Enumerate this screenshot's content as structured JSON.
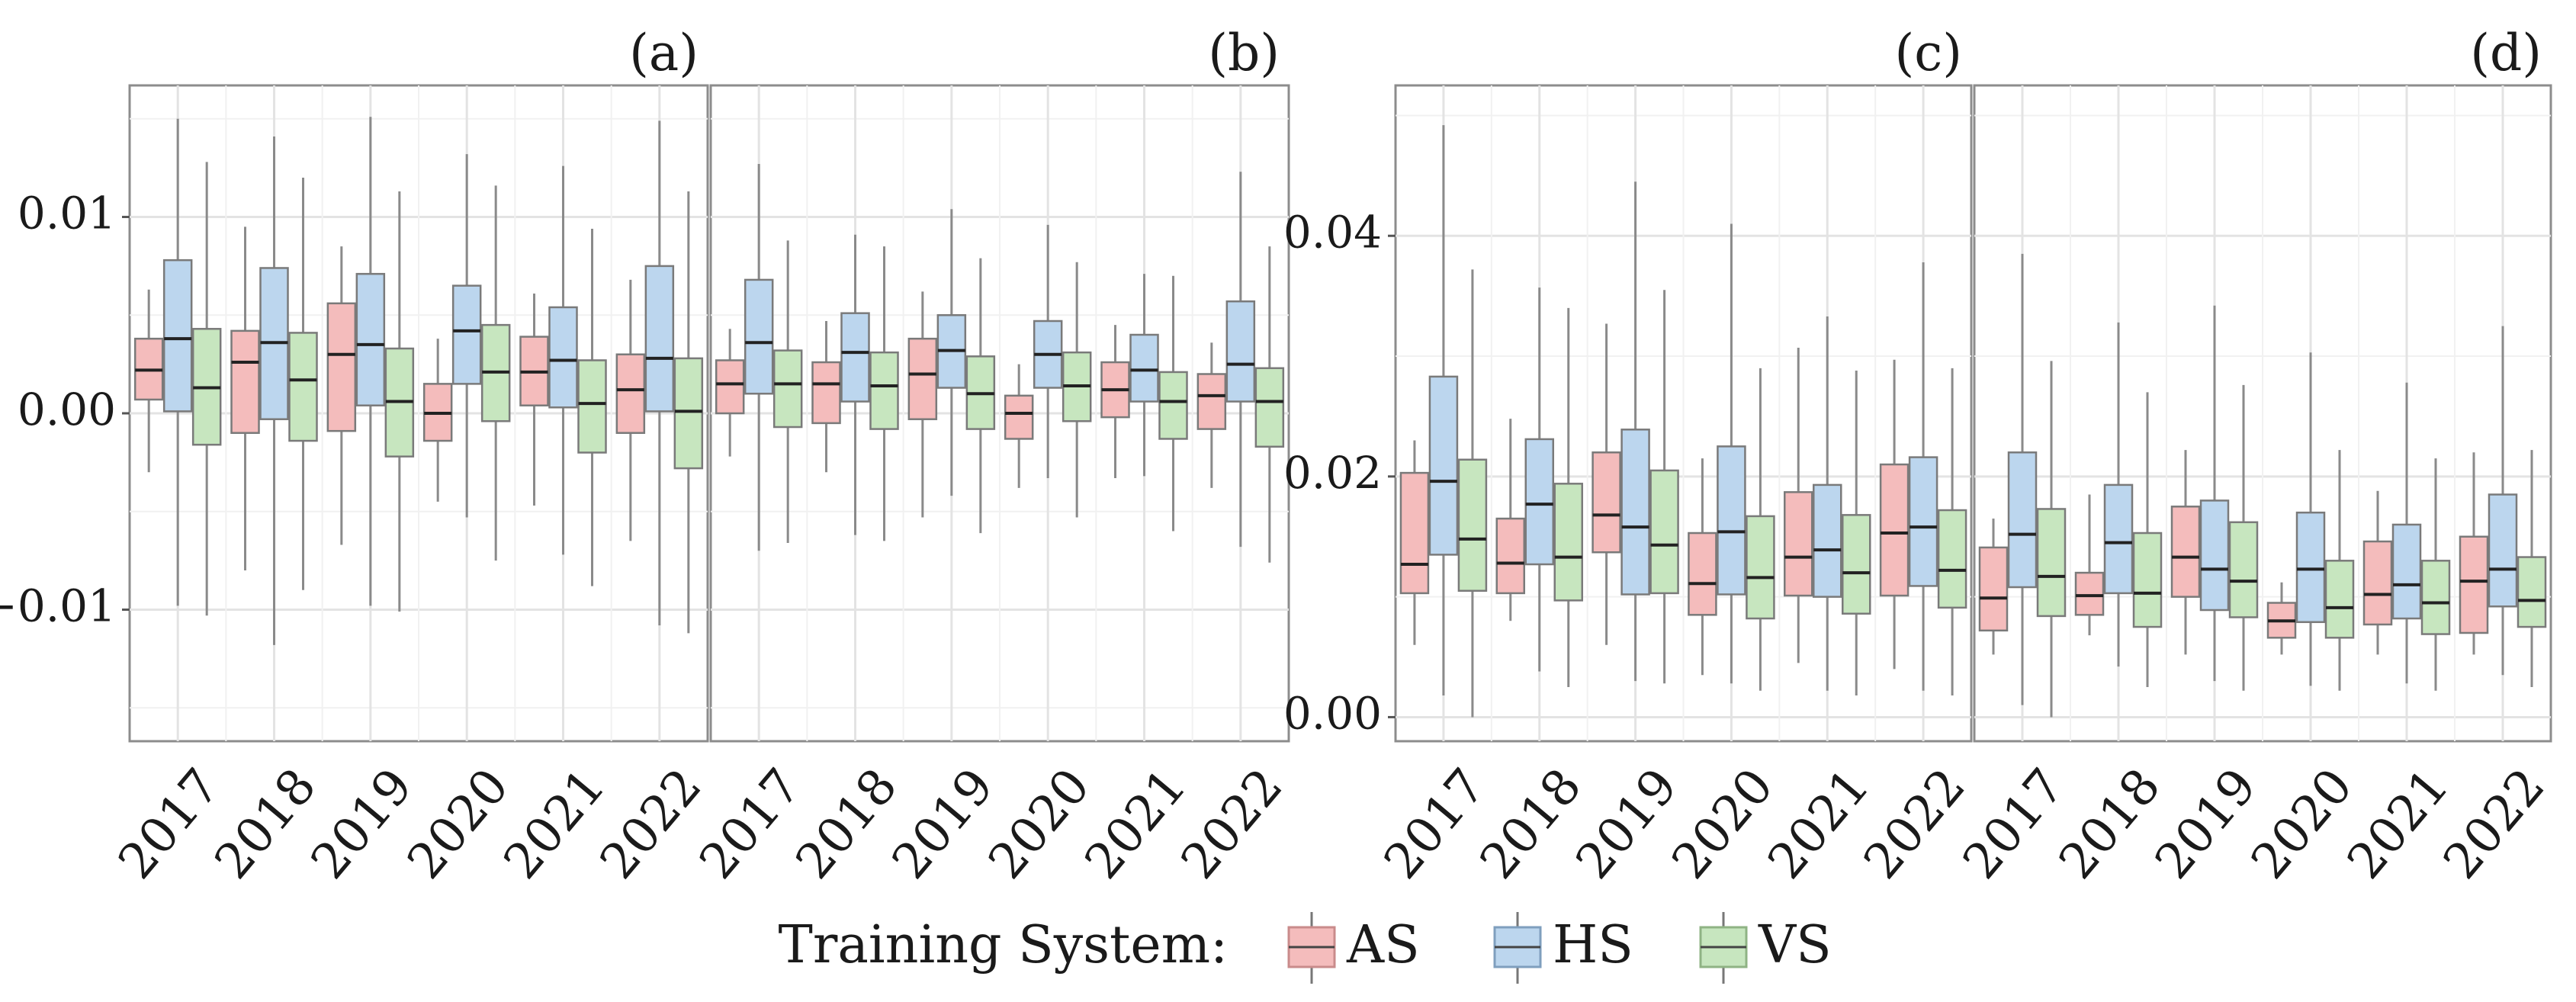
{
  "chart_data": [
    {
      "panel": "(a)",
      "type": "boxplot",
      "categories": [
        "2017",
        "2018",
        "2019",
        "2020",
        "2021",
        "2022"
      ],
      "ylim": [
        -0.0167,
        0.0167
      ],
      "yticks": [
        -0.01,
        0.0,
        0.01
      ],
      "ytick_labels": [
        "−0.01",
        "0.00",
        "0.01"
      ],
      "series": [
        {
          "name": "AS",
          "boxes": [
            {
              "low": -0.003,
              "q1": 0.0007,
              "median": 0.0022,
              "q3": 0.0038,
              "high": 0.0063
            },
            {
              "low": -0.008,
              "q1": -0.001,
              "median": 0.0026,
              "q3": 0.0042,
              "high": 0.0095
            },
            {
              "low": -0.0067,
              "q1": -0.0009,
              "median": 0.003,
              "q3": 0.0056,
              "high": 0.0085
            },
            {
              "low": -0.0045,
              "q1": -0.0014,
              "median": 0.0,
              "q3": 0.0015,
              "high": 0.0038
            },
            {
              "low": -0.0047,
              "q1": 0.0004,
              "median": 0.0021,
              "q3": 0.0039,
              "high": 0.0061
            },
            {
              "low": -0.0065,
              "q1": -0.001,
              "median": 0.0012,
              "q3": 0.003,
              "high": 0.0068
            }
          ]
        },
        {
          "name": "HS",
          "boxes": [
            {
              "low": -0.0098,
              "q1": 0.0001,
              "median": 0.0038,
              "q3": 0.0078,
              "high": 0.015
            },
            {
              "low": -0.0118,
              "q1": -0.0003,
              "median": 0.0036,
              "q3": 0.0074,
              "high": 0.0141
            },
            {
              "low": -0.0098,
              "q1": 0.0004,
              "median": 0.0035,
              "q3": 0.0071,
              "high": 0.0151
            },
            {
              "low": -0.0053,
              "q1": 0.0015,
              "median": 0.0042,
              "q3": 0.0065,
              "high": 0.0132
            },
            {
              "low": -0.0072,
              "q1": 0.0003,
              "median": 0.0027,
              "q3": 0.0054,
              "high": 0.0126
            },
            {
              "low": -0.0108,
              "q1": 0.0001,
              "median": 0.0028,
              "q3": 0.0075,
              "high": 0.0149
            }
          ]
        },
        {
          "name": "VS",
          "boxes": [
            {
              "low": -0.0103,
              "q1": -0.0016,
              "median": 0.0013,
              "q3": 0.0043,
              "high": 0.0128
            },
            {
              "low": -0.009,
              "q1": -0.0014,
              "median": 0.0017,
              "q3": 0.0041,
              "high": 0.012
            },
            {
              "low": -0.0101,
              "q1": -0.0022,
              "median": 0.0006,
              "q3": 0.0033,
              "high": 0.0113
            },
            {
              "low": -0.0075,
              "q1": -0.0004,
              "median": 0.0021,
              "q3": 0.0045,
              "high": 0.0116
            },
            {
              "low": -0.0088,
              "q1": -0.002,
              "median": 0.0005,
              "q3": 0.0027,
              "high": 0.0094
            },
            {
              "low": -0.0112,
              "q1": -0.0028,
              "median": 0.0001,
              "q3": 0.0028,
              "high": 0.0113
            }
          ]
        }
      ]
    },
    {
      "panel": "(b)",
      "type": "boxplot",
      "categories": [
        "2017",
        "2018",
        "2019",
        "2020",
        "2021",
        "2022"
      ],
      "ylim": [
        -0.0167,
        0.0167
      ],
      "series": [
        {
          "name": "AS",
          "boxes": [
            {
              "low": -0.0022,
              "q1": 0.0,
              "median": 0.0015,
              "q3": 0.0027,
              "high": 0.0043
            },
            {
              "low": -0.003,
              "q1": -0.0005,
              "median": 0.0015,
              "q3": 0.0026,
              "high": 0.0047
            },
            {
              "low": -0.0053,
              "q1": -0.0003,
              "median": 0.002,
              "q3": 0.0038,
              "high": 0.0062
            },
            {
              "low": -0.0038,
              "q1": -0.0013,
              "median": 0.0,
              "q3": 0.0009,
              "high": 0.0025
            },
            {
              "low": -0.0033,
              "q1": -0.0002,
              "median": 0.0012,
              "q3": 0.0026,
              "high": 0.0045
            },
            {
              "low": -0.0038,
              "q1": -0.0008,
              "median": 0.0009,
              "q3": 0.002,
              "high": 0.0036
            }
          ]
        },
        {
          "name": "HS",
          "boxes": [
            {
              "low": -0.007,
              "q1": 0.001,
              "median": 0.0036,
              "q3": 0.0068,
              "high": 0.0127
            },
            {
              "low": -0.0062,
              "q1": 0.0006,
              "median": 0.0031,
              "q3": 0.0051,
              "high": 0.0091
            },
            {
              "low": -0.0042,
              "q1": 0.0013,
              "median": 0.0032,
              "q3": 0.005,
              "high": 0.0104
            },
            {
              "low": -0.0033,
              "q1": 0.0013,
              "median": 0.003,
              "q3": 0.0047,
              "high": 0.0096
            },
            {
              "low": -0.0032,
              "q1": 0.0006,
              "median": 0.0022,
              "q3": 0.004,
              "high": 0.0071
            },
            {
              "low": -0.0068,
              "q1": 0.0006,
              "median": 0.0025,
              "q3": 0.0057,
              "high": 0.0123
            }
          ]
        },
        {
          "name": "VS",
          "boxes": [
            {
              "low": -0.0066,
              "q1": -0.0007,
              "median": 0.0015,
              "q3": 0.0032,
              "high": 0.0088
            },
            {
              "low": -0.0065,
              "q1": -0.0008,
              "median": 0.0014,
              "q3": 0.0031,
              "high": 0.0085
            },
            {
              "low": -0.0061,
              "q1": -0.0008,
              "median": 0.001,
              "q3": 0.0029,
              "high": 0.0079
            },
            {
              "low": -0.0053,
              "q1": -0.0004,
              "median": 0.0014,
              "q3": 0.0031,
              "high": 0.0077
            },
            {
              "low": -0.006,
              "q1": -0.0013,
              "median": 0.0006,
              "q3": 0.0021,
              "high": 0.007
            },
            {
              "low": -0.0076,
              "q1": -0.0017,
              "median": 0.0006,
              "q3": 0.0023,
              "high": 0.0085
            }
          ]
        }
      ]
    },
    {
      "panel": "(c)",
      "type": "boxplot",
      "categories": [
        "2017",
        "2018",
        "2019",
        "2020",
        "2021",
        "2022"
      ],
      "ylim": [
        -0.002,
        0.0525
      ],
      "yticks": [
        0.0,
        0.02,
        0.04
      ],
      "ytick_labels": [
        "0.00",
        "0.02",
        "0.04"
      ],
      "series": [
        {
          "name": "AS",
          "boxes": [
            {
              "low": 0.006,
              "q1": 0.0103,
              "median": 0.0127,
              "q3": 0.0203,
              "high": 0.023
            },
            {
              "low": 0.008,
              "q1": 0.0103,
              "median": 0.0128,
              "q3": 0.0165,
              "high": 0.0248
            },
            {
              "low": 0.006,
              "q1": 0.0137,
              "median": 0.0168,
              "q3": 0.022,
              "high": 0.0327
            },
            {
              "low": 0.0035,
              "q1": 0.0085,
              "median": 0.0111,
              "q3": 0.0153,
              "high": 0.0215
            },
            {
              "low": 0.0045,
              "q1": 0.0101,
              "median": 0.0133,
              "q3": 0.0187,
              "high": 0.0307
            },
            {
              "low": 0.004,
              "q1": 0.0101,
              "median": 0.0153,
              "q3": 0.021,
              "high": 0.0297
            }
          ]
        },
        {
          "name": "HS",
          "boxes": [
            {
              "low": 0.0018,
              "q1": 0.0135,
              "median": 0.0196,
              "q3": 0.0283,
              "high": 0.0492
            },
            {
              "low": 0.0038,
              "q1": 0.0127,
              "median": 0.0177,
              "q3": 0.0231,
              "high": 0.0357
            },
            {
              "low": 0.003,
              "q1": 0.0102,
              "median": 0.0158,
              "q3": 0.0239,
              "high": 0.0445
            },
            {
              "low": 0.0028,
              "q1": 0.0102,
              "median": 0.0154,
              "q3": 0.0225,
              "high": 0.041
            },
            {
              "low": 0.0022,
              "q1": 0.01,
              "median": 0.0139,
              "q3": 0.0193,
              "high": 0.0333
            },
            {
              "low": 0.0022,
              "q1": 0.0109,
              "median": 0.0158,
              "q3": 0.0216,
              "high": 0.0378
            }
          ]
        },
        {
          "name": "VS",
          "boxes": [
            {
              "low": 0.0,
              "q1": 0.0105,
              "median": 0.0148,
              "q3": 0.0214,
              "high": 0.0372
            },
            {
              "low": 0.0025,
              "q1": 0.0097,
              "median": 0.0133,
              "q3": 0.0194,
              "high": 0.034
            },
            {
              "low": 0.0028,
              "q1": 0.0103,
              "median": 0.0143,
              "q3": 0.0205,
              "high": 0.0355
            },
            {
              "low": 0.0022,
              "q1": 0.0082,
              "median": 0.0116,
              "q3": 0.0167,
              "high": 0.029
            },
            {
              "low": 0.0018,
              "q1": 0.0086,
              "median": 0.012,
              "q3": 0.0168,
              "high": 0.0288
            },
            {
              "low": 0.0018,
              "q1": 0.0091,
              "median": 0.0122,
              "q3": 0.0172,
              "high": 0.029
            }
          ]
        }
      ]
    },
    {
      "panel": "(d)",
      "type": "boxplot",
      "categories": [
        "2017",
        "2018",
        "2019",
        "2020",
        "2021",
        "2022"
      ],
      "ylim": [
        -0.002,
        0.0525
      ],
      "series": [
        {
          "name": "AS",
          "boxes": [
            {
              "low": 0.0052,
              "q1": 0.0072,
              "median": 0.0099,
              "q3": 0.0141,
              "high": 0.0165
            },
            {
              "low": 0.0068,
              "q1": 0.0085,
              "median": 0.0101,
              "q3": 0.012,
              "high": 0.0185
            },
            {
              "low": 0.0052,
              "q1": 0.01,
              "median": 0.0133,
              "q3": 0.0175,
              "high": 0.0222
            },
            {
              "low": 0.0052,
              "q1": 0.0066,
              "median": 0.008,
              "q3": 0.0095,
              "high": 0.0112
            },
            {
              "low": 0.0052,
              "q1": 0.0077,
              "median": 0.0102,
              "q3": 0.0146,
              "high": 0.0188
            },
            {
              "low": 0.0052,
              "q1": 0.007,
              "median": 0.0113,
              "q3": 0.015,
              "high": 0.022
            }
          ]
        },
        {
          "name": "HS",
          "boxes": [
            {
              "low": 0.001,
              "q1": 0.0108,
              "median": 0.0152,
              "q3": 0.022,
              "high": 0.0385
            },
            {
              "low": 0.0042,
              "q1": 0.0103,
              "median": 0.0145,
              "q3": 0.0193,
              "high": 0.0328
            },
            {
              "low": 0.003,
              "q1": 0.0089,
              "median": 0.0123,
              "q3": 0.018,
              "high": 0.0342
            },
            {
              "low": 0.0026,
              "q1": 0.0079,
              "median": 0.0123,
              "q3": 0.017,
              "high": 0.0303
            },
            {
              "low": 0.0028,
              "q1": 0.0082,
              "median": 0.011,
              "q3": 0.016,
              "high": 0.0278
            },
            {
              "low": 0.0035,
              "q1": 0.0092,
              "median": 0.0123,
              "q3": 0.0185,
              "high": 0.0325
            }
          ]
        },
        {
          "name": "VS",
          "boxes": [
            {
              "low": 0.0,
              "q1": 0.0084,
              "median": 0.0117,
              "q3": 0.0173,
              "high": 0.0296
            },
            {
              "low": 0.0025,
              "q1": 0.0075,
              "median": 0.0103,
              "q3": 0.0153,
              "high": 0.027
            },
            {
              "low": 0.0022,
              "q1": 0.0083,
              "median": 0.0113,
              "q3": 0.0162,
              "high": 0.0276
            },
            {
              "low": 0.0022,
              "q1": 0.0066,
              "median": 0.0091,
              "q3": 0.013,
              "high": 0.0222
            },
            {
              "low": 0.0022,
              "q1": 0.0069,
              "median": 0.0095,
              "q3": 0.013,
              "high": 0.0215
            },
            {
              "low": 0.0025,
              "q1": 0.0075,
              "median": 0.0097,
              "q3": 0.0133,
              "high": 0.0222
            }
          ]
        }
      ]
    }
  ],
  "legend": {
    "title": "Training System:",
    "placement": "bottom-center",
    "items": [
      {
        "label": "AS",
        "fill": "#f4bcbc",
        "stroke": "#c98b8b"
      },
      {
        "label": "HS",
        "fill": "#bcd6ee",
        "stroke": "#7f9fbe"
      },
      {
        "label": "VS",
        "fill": "#c7e6bf",
        "stroke": "#8fb384"
      }
    ]
  },
  "colors": {
    "AS": "#f4bcbc",
    "HS": "#bcd6ee",
    "VS": "#c7e6bf"
  }
}
